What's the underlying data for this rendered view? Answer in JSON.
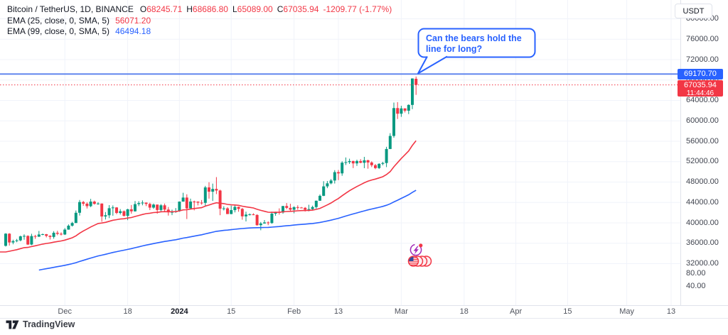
{
  "header": {
    "symbol_title": "Bitcoin / TetherUS, 1D, BINANCE",
    "ohlc": {
      "o_label": "O",
      "o": "68245.71",
      "h_label": "H",
      "h": "68686.80",
      "l_label": "L",
      "l": "65089.00",
      "c_label": "C",
      "c": "67035.94",
      "change": "-1209.77 (-1.77%)"
    },
    "indicators": [
      {
        "label": "EMA (25, close, 0, SMA, 5)",
        "value": "56071.20",
        "color": "#f23645"
      },
      {
        "label": "EMA (99, close, 0, SMA, 5)",
        "value": "46494.18",
        "color": "#2962ff"
      }
    ]
  },
  "annotation": {
    "line1": "Can the bears hold the",
    "line2": "line for long?"
  },
  "price_scale": {
    "line_label": "69170.70",
    "last_price": "67035.94",
    "countdown": "11:44:46"
  },
  "currency_button": "USDT",
  "logo_text": "TradingView",
  "icons": {
    "event_icons": [
      "flash-event-icon",
      "etf-coins-icon"
    ],
    "logo_icon": "tradingview-logo-icon"
  },
  "colors": {
    "up": "#089981",
    "down": "#f23645",
    "accent_blue": "#2962ff",
    "grid": "#f0f3fa",
    "horizontal_line": "#4672ec"
  },
  "chart_data": {
    "type": "candlestick",
    "title": "Bitcoin / TetherUS, 1D, BINANCE",
    "symbol": "BTC/USDT",
    "interval": "1D",
    "exchange": "BINANCE",
    "start_date": "2023-11-15",
    "end_date": "2024-03-05",
    "horizontal_line": 69170.7,
    "last_price": 67035.94,
    "grid": true,
    "candles": [
      [
        35500,
        37980,
        35360,
        37880
      ],
      [
        37880,
        37980,
        35550,
        36160
      ],
      [
        36160,
        36700,
        35800,
        36420
      ],
      [
        36420,
        36850,
        36200,
        36570
      ],
      [
        36570,
        37500,
        36380,
        37360
      ],
      [
        37360,
        37750,
        36700,
        37440
      ],
      [
        37440,
        37560,
        35670,
        35750
      ],
      [
        35750,
        37860,
        35630,
        37410
      ],
      [
        37410,
        37650,
        36870,
        37290
      ],
      [
        37290,
        38415,
        37250,
        37720
      ],
      [
        37720,
        37890,
        37590,
        37780
      ],
      [
        37780,
        37820,
        37150,
        37450
      ],
      [
        37450,
        37580,
        36740,
        37240
      ],
      [
        37240,
        38370,
        36890,
        38060
      ],
      [
        38060,
        38440,
        37570,
        37860
      ],
      [
        37860,
        38140,
        37530,
        37720
      ],
      [
        37720,
        38970,
        37620,
        38680
      ],
      [
        38680,
        39700,
        38650,
        39450
      ],
      [
        39450,
        40200,
        39270,
        39970
      ],
      [
        39970,
        42420,
        39970,
        41980
      ],
      [
        41980,
        44480,
        41420,
        44080
      ],
      [
        44080,
        44300,
        43350,
        43760
      ],
      [
        43760,
        44050,
        42820,
        43270
      ],
      [
        43270,
        44700,
        43080,
        44170
      ],
      [
        44170,
        44360,
        43580,
        43720
      ],
      [
        43720,
        44050,
        43560,
        43790
      ],
      [
        43790,
        43810,
        40220,
        41250
      ],
      [
        41250,
        42120,
        40660,
        41490
      ],
      [
        41490,
        43480,
        40930,
        42870
      ],
      [
        42870,
        43420,
        41400,
        43020
      ],
      [
        43020,
        43080,
        41710,
        41940
      ],
      [
        41940,
        42700,
        41640,
        42280
      ],
      [
        42280,
        42430,
        41250,
        41370
      ],
      [
        41370,
        42760,
        40530,
        42660
      ],
      [
        42660,
        43500,
        41810,
        42260
      ],
      [
        42260,
        44280,
        42210,
        43670
      ],
      [
        43670,
        44240,
        43280,
        43870
      ],
      [
        43870,
        44400,
        43440,
        43970
      ],
      [
        43970,
        44000,
        43290,
        43710
      ],
      [
        43710,
        43950,
        42500,
        42990
      ],
      [
        42990,
        43800,
        42740,
        43580
      ],
      [
        43580,
        43600,
        41810,
        42520
      ],
      [
        42520,
        43680,
        42100,
        43440
      ],
      [
        43440,
        43790,
        42280,
        42600
      ],
      [
        42600,
        43110,
        41430,
        42070
      ],
      [
        42070,
        42600,
        41520,
        42140
      ],
      [
        42140,
        42900,
        41965,
        42280
      ],
      [
        42280,
        44200,
        42180,
        44170
      ],
      [
        44170,
        45900,
        44150,
        44960
      ],
      [
        44960,
        45600,
        40750,
        42840
      ],
      [
        42840,
        44740,
        42640,
        44180
      ],
      [
        44180,
        44360,
        42450,
        44160
      ],
      [
        44160,
        44210,
        43420,
        43970
      ],
      [
        43970,
        44480,
        43570,
        43920
      ],
      [
        43920,
        47250,
        43180,
        46950
      ],
      [
        46950,
        47970,
        44750,
        46110
      ],
      [
        46110,
        47700,
        44300,
        46650
      ],
      [
        46650,
        48970,
        45640,
        46340
      ],
      [
        46340,
        46500,
        41500,
        42780
      ],
      [
        42780,
        43250,
        42440,
        42840
      ],
      [
        42840,
        43080,
        41720,
        41730
      ],
      [
        41730,
        43370,
        41700,
        42500
      ],
      [
        42500,
        43580,
        42050,
        43130
      ],
      [
        43130,
        43190,
        42180,
        42740
      ],
      [
        42740,
        42930,
        40620,
        41280
      ],
      [
        41280,
        42200,
        40280,
        41620
      ],
      [
        41620,
        41850,
        41450,
        41660
      ],
      [
        41660,
        41880,
        41500,
        41550
      ],
      [
        41550,
        41690,
        39450,
        39550
      ],
      [
        39550,
        40170,
        38555,
        39880
      ],
      [
        39880,
        40550,
        39840,
        40080
      ],
      [
        40080,
        40300,
        39550,
        39960
      ],
      [
        39960,
        42200,
        39820,
        41810
      ],
      [
        41810,
        42190,
        41390,
        42120
      ],
      [
        42120,
        42840,
        41620,
        42030
      ],
      [
        42030,
        43310,
        41790,
        43300
      ],
      [
        43300,
        43880,
        42680,
        42940
      ],
      [
        42940,
        43745,
        42270,
        42580
      ],
      [
        42580,
        43250,
        41880,
        43080
      ],
      [
        43080,
        43440,
        42560,
        43000
      ],
      [
        43000,
        43120,
        42880,
        42950
      ],
      [
        42950,
        43100,
        42220,
        42580
      ],
      [
        42580,
        43550,
        42260,
        42700
      ],
      [
        42700,
        43370,
        42570,
        43100
      ],
      [
        43100,
        44370,
        42790,
        44340
      ],
      [
        44340,
        45570,
        44330,
        45300
      ],
      [
        45300,
        48170,
        45240,
        47150
      ],
      [
        47150,
        48200,
        46800,
        47750
      ],
      [
        47750,
        48590,
        47550,
        48300
      ],
      [
        48300,
        50330,
        47710,
        49940
      ],
      [
        49940,
        50370,
        48380,
        49700
      ],
      [
        49700,
        52080,
        49230,
        51800
      ],
      [
        51800,
        52820,
        51340,
        51900
      ],
      [
        51900,
        52580,
        51550,
        52120
      ],
      [
        52120,
        52190,
        50740,
        51660
      ],
      [
        51660,
        52380,
        51170,
        52120
      ],
      [
        52120,
        52490,
        51680,
        51780
      ],
      [
        51780,
        52940,
        50720,
        52270
      ],
      [
        52270,
        52370,
        50620,
        51840
      ],
      [
        51840,
        52070,
        50940,
        51300
      ],
      [
        51300,
        51540,
        50520,
        50740
      ],
      [
        50740,
        51690,
        50560,
        51570
      ],
      [
        51570,
        51960,
        51290,
        51730
      ],
      [
        51730,
        54910,
        50930,
        54480
      ],
      [
        54480,
        57580,
        54450,
        57040
      ],
      [
        57040,
        63585,
        56690,
        62500
      ],
      [
        62500,
        63670,
        60360,
        61400
      ],
      [
        61400,
        62950,
        60780,
        62440
      ],
      [
        62440,
        62470,
        61640,
        61990
      ],
      [
        61990,
        63230,
        61320,
        63120
      ],
      [
        63120,
        68330,
        62300,
        68300
      ],
      [
        68245.71,
        68686.8,
        65089.0,
        67035.94
      ]
    ],
    "emas": [
      {
        "period": 25,
        "source": "close",
        "displayed_value": 56071.2,
        "color": "#f23645",
        "seed": 34000,
        "start_index": 0
      },
      {
        "period": 99,
        "source": "close",
        "displayed_value": 46494.18,
        "color": "#2962ff",
        "seed": 30600,
        "start_index": 9
      }
    ],
    "price_ticks": [
      {
        "label": "80000.00",
        "value": 80000
      },
      {
        "label": "76000.00",
        "value": 76000
      },
      {
        "label": "72000.00",
        "value": 72000
      },
      {
        "label": "68000.00",
        "value": 68000
      },
      {
        "label": "64000.00",
        "value": 64000
      },
      {
        "label": "60000.00",
        "value": 60000
      },
      {
        "label": "56000.00",
        "value": 56000
      },
      {
        "label": "52000.00",
        "value": 52000
      },
      {
        "label": "48000.00",
        "value": 48000
      },
      {
        "label": "44000.00",
        "value": 44000
      },
      {
        "label": "40000.00",
        "value": 40000
      },
      {
        "label": "36000.00",
        "value": 36000
      },
      {
        "label": "32000.00",
        "value": 32000
      }
    ],
    "secondary_price_ticks": [
      "80.00",
      "40.00"
    ],
    "time_ticks": [
      {
        "label": "Dec",
        "index": 16,
        "major": false
      },
      {
        "label": "18",
        "index": 33,
        "major": false
      },
      {
        "label": "2024",
        "index": 47,
        "major": true
      },
      {
        "label": "15",
        "index": 61,
        "major": false
      },
      {
        "label": "Feb",
        "index": 78,
        "major": false
      },
      {
        "label": "13",
        "index": 90,
        "major": false
      },
      {
        "label": "Mar",
        "index": 107,
        "major": false
      },
      {
        "label": "18",
        "index": 124,
        "major": false
      },
      {
        "label": "Apr",
        "index": 138,
        "major": false
      },
      {
        "label": "15",
        "index": 152,
        "major": false
      },
      {
        "label": "May",
        "index": 168,
        "major": false
      },
      {
        "label": "13",
        "index": 180,
        "major": false
      }
    ]
  }
}
